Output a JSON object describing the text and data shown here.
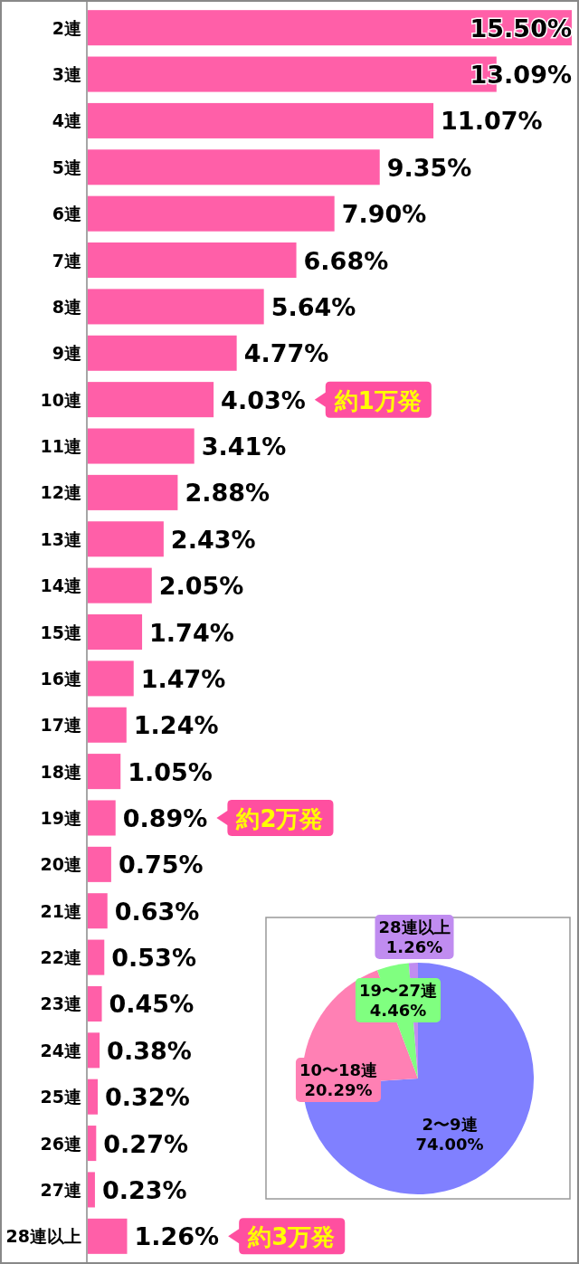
{
  "chart_data": [
    {
      "type": "bar",
      "orientation": "horizontal",
      "categories": [
        "2連",
        "3連",
        "4連",
        "5連",
        "6連",
        "7連",
        "8連",
        "9連",
        "10連",
        "11連",
        "12連",
        "13連",
        "14連",
        "15連",
        "16連",
        "17連",
        "18連",
        "19連",
        "20連",
        "21連",
        "22連",
        "23連",
        "24連",
        "25連",
        "26連",
        "27連",
        "28連以上"
      ],
      "values": [
        15.5,
        13.09,
        11.07,
        9.35,
        7.9,
        6.68,
        5.64,
        4.77,
        4.03,
        3.41,
        2.88,
        2.43,
        2.05,
        1.74,
        1.47,
        1.24,
        1.05,
        0.89,
        0.75,
        0.63,
        0.53,
        0.45,
        0.38,
        0.32,
        0.27,
        0.23,
        1.26
      ],
      "value_labels": [
        "15.50%",
        "13.09%",
        "11.07%",
        "9.35%",
        "7.90%",
        "6.68%",
        "5.64%",
        "4.77%",
        "4.03%",
        "3.41%",
        "2.88%",
        "2.43%",
        "2.05%",
        "1.74%",
        "1.47%",
        "1.24%",
        "1.05%",
        "0.89%",
        "0.75%",
        "0.63%",
        "0.53%",
        "0.45%",
        "0.38%",
        "0.32%",
        "0.27%",
        "0.23%",
        "1.26%"
      ],
      "color": "#ff5fa8",
      "annotations": [
        "約1万発",
        "約2万発",
        "約3万発"
      ]
    },
    {
      "type": "pie",
      "categories": [
        "2〜9連",
        "10〜18連",
        "19〜27連",
        "28連以上"
      ],
      "values": [
        74.0,
        20.29,
        4.46,
        1.26
      ],
      "value_labels": [
        "74.00%",
        "20.29%",
        "4.46%",
        "1.26%"
      ],
      "colors": [
        "#8080ff",
        "#ff80b4",
        "#80ff80",
        "#c08cf0"
      ]
    }
  ]
}
